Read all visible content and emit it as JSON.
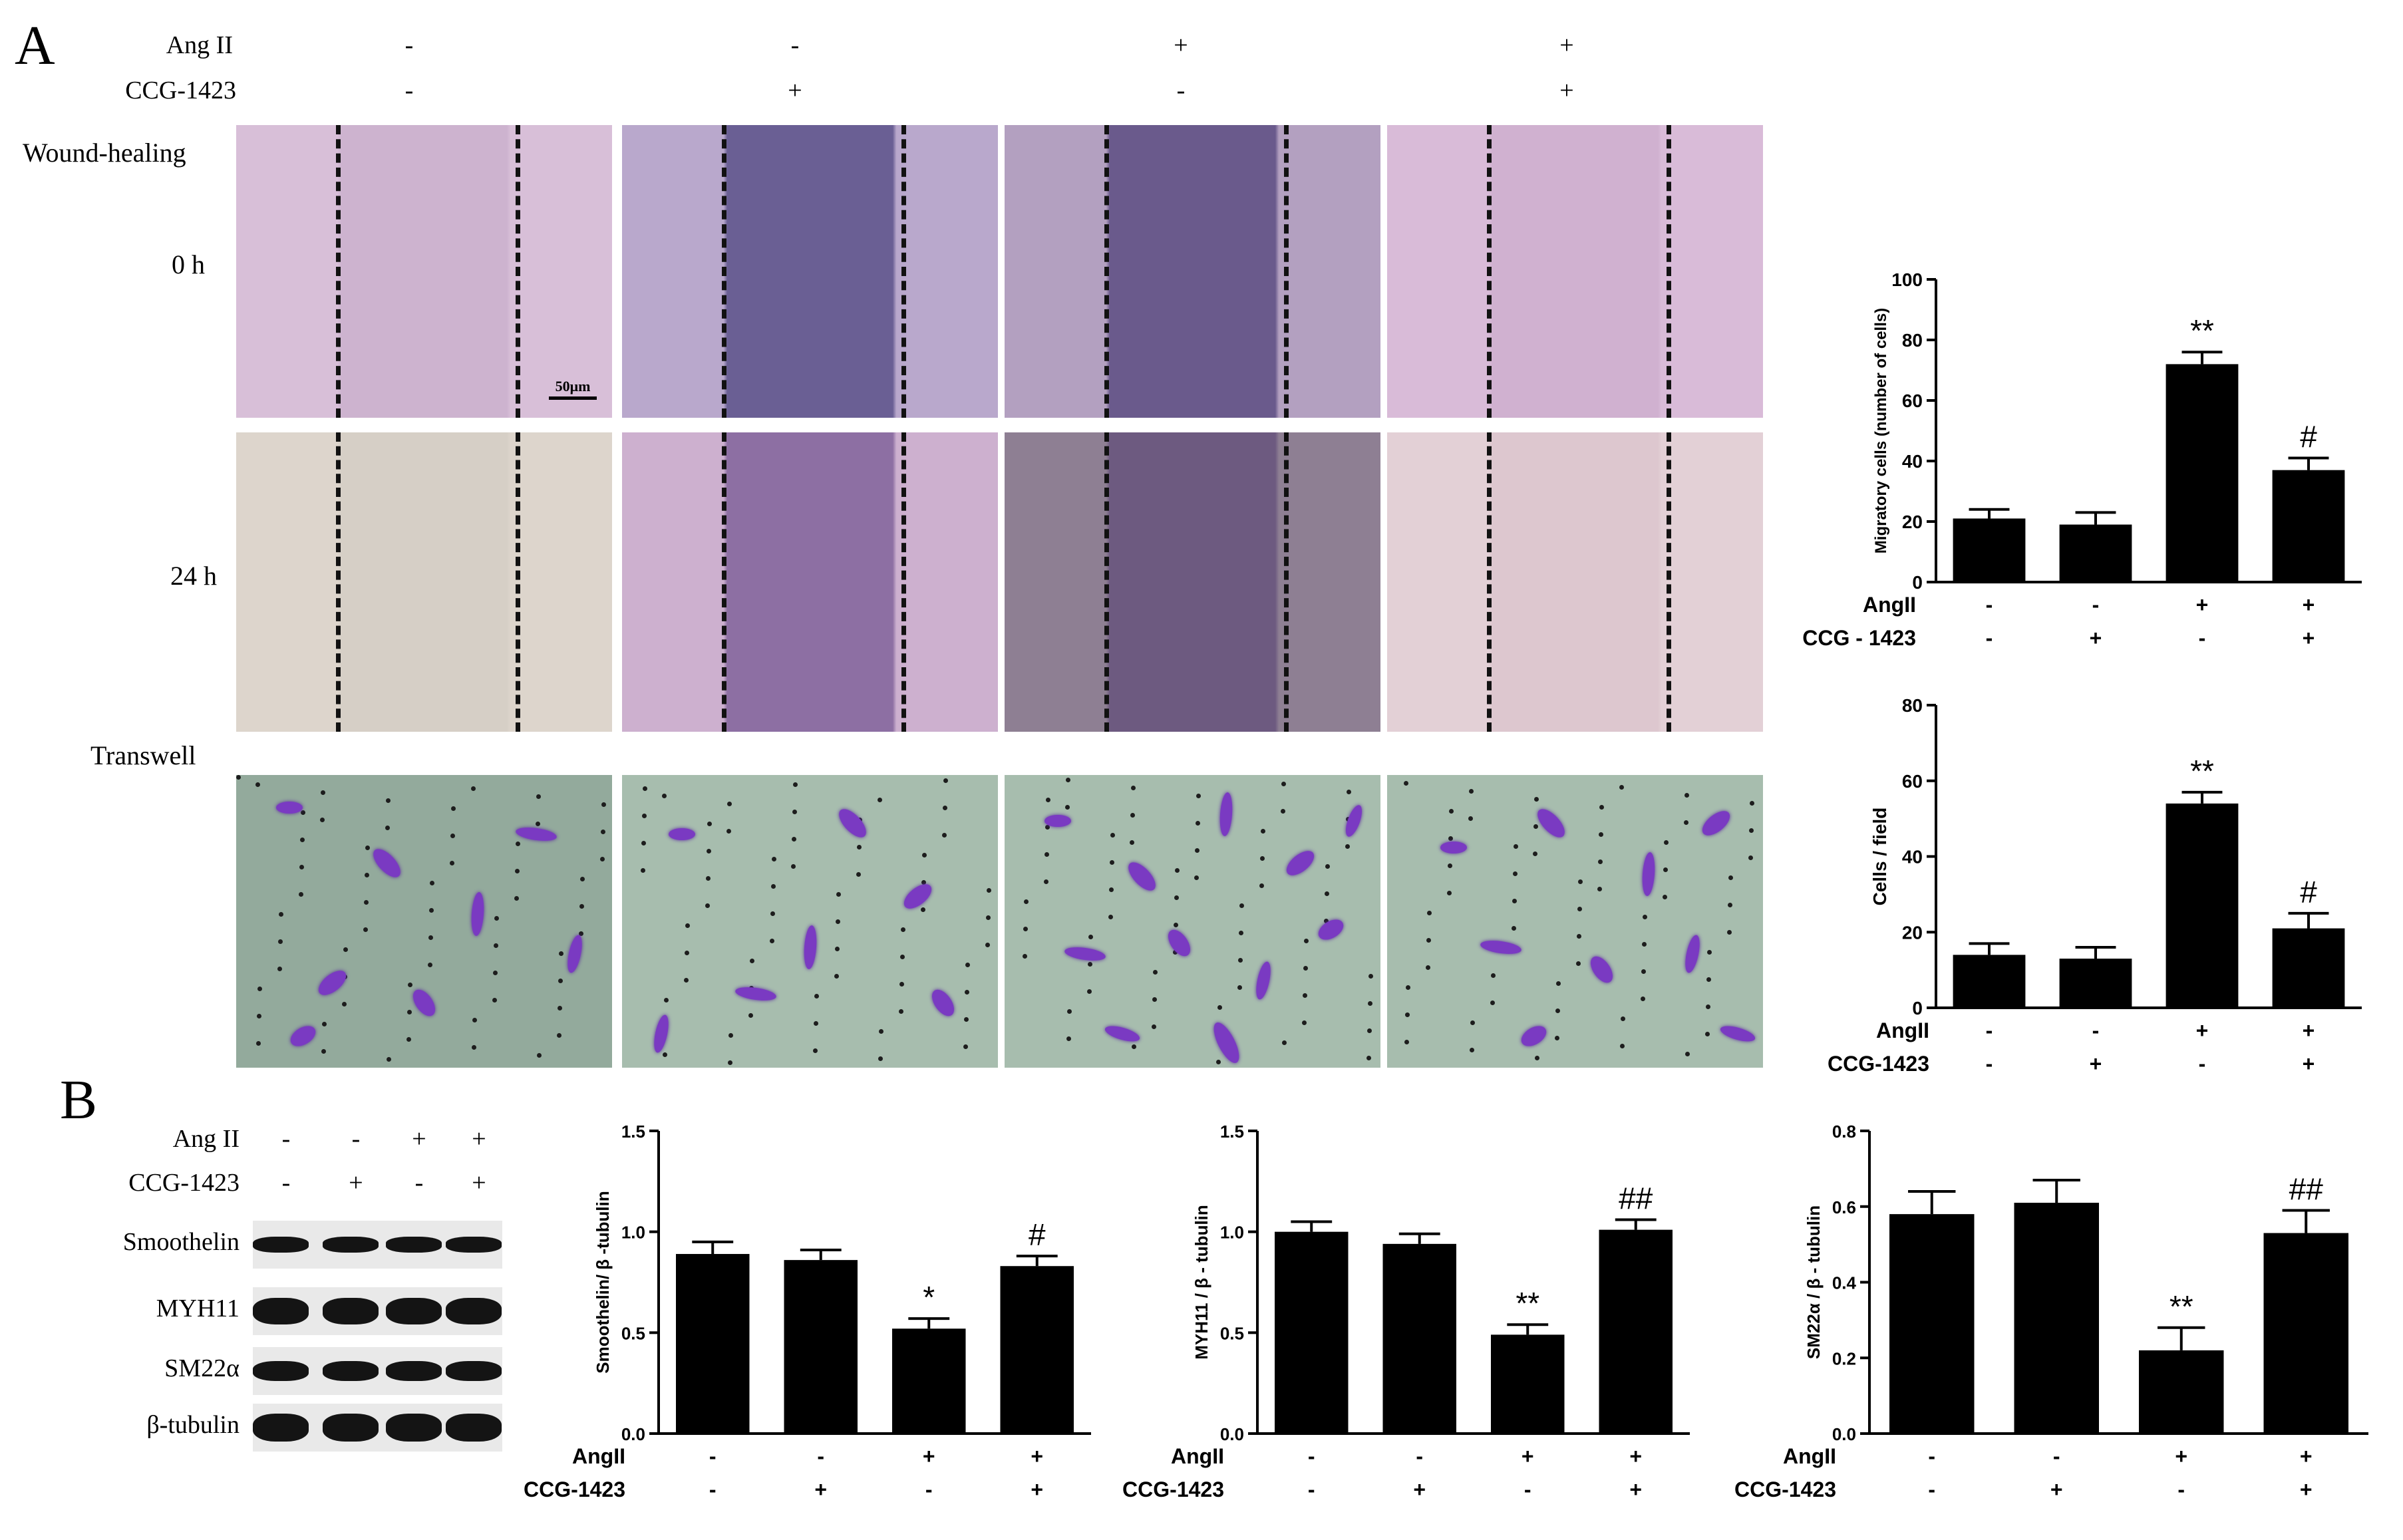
{
  "figure": {
    "panel_a_letter": "A",
    "panel_b_letter": "B",
    "panel_a_treatments": [
      {
        "label": "Ang II",
        "values": [
          "-",
          "-",
          "+",
          "+"
        ]
      },
      {
        "label": "CCG-1423",
        "values": [
          "-",
          "+",
          "-",
          "+"
        ]
      }
    ],
    "row_labels": {
      "wound_healing": "Wound-healing",
      "t0": "0 h",
      "t24": "24 h",
      "transwell": "Transwell"
    },
    "scale_bar": "50μm",
    "panel_b_treatments": [
      {
        "label": "Ang II",
        "values": [
          "-",
          "-",
          "+",
          "+"
        ]
      },
      {
        "label": "CCG-1423",
        "values": [
          "-",
          "+",
          "-",
          "+"
        ]
      }
    ],
    "wb_proteins": [
      "Smoothelin",
      "MYH11",
      "SM22α",
      "β-tubulin"
    ]
  },
  "colors": {
    "bar": "#000000",
    "wound_pink": "#d9bcd6",
    "wound_violet": "#8677a8",
    "transwell_green": "#9bb3a5",
    "cell_stain": "#7a3ac2"
  },
  "chart_data": [
    {
      "type": "bar",
      "ylabel": "Migratory cells (number of cells)",
      "ylim": [
        0,
        100
      ],
      "yticks": [
        0,
        20,
        40,
        60,
        80,
        100
      ],
      "values": [
        21,
        19,
        72,
        37
      ],
      "errors": [
        3,
        4,
        4,
        4
      ],
      "annotations": [
        "",
        "",
        "**",
        "#"
      ],
      "row_labels": [
        "AngII",
        "CCG - 1423"
      ],
      "row_values": [
        [
          "-",
          "-",
          "+",
          "+"
        ],
        [
          "-",
          "+",
          "-",
          "+"
        ]
      ]
    },
    {
      "type": "bar",
      "ylabel": "Cells / field",
      "ylim": [
        0,
        80
      ],
      "yticks": [
        0,
        20,
        40,
        60,
        80
      ],
      "values": [
        14,
        13,
        54,
        21
      ],
      "errors": [
        3,
        3,
        3,
        4
      ],
      "annotations": [
        "",
        "",
        "**",
        "#"
      ],
      "row_labels": [
        "AngII",
        "CCG-1423"
      ],
      "row_values": [
        [
          "-",
          "-",
          "+",
          "+"
        ],
        [
          "-",
          "+",
          "-",
          "+"
        ]
      ]
    },
    {
      "type": "bar",
      "ylabel": "Smoothelin/ β -tubulin",
      "ylim": [
        0,
        1.5
      ],
      "yticks": [
        "0.0",
        "0.5",
        "1.0",
        "1.5"
      ],
      "values": [
        0.89,
        0.86,
        0.52,
        0.83
      ],
      "errors": [
        0.06,
        0.05,
        0.05,
        0.05
      ],
      "annotations": [
        "",
        "",
        "*",
        "#"
      ],
      "row_labels": [
        "AngII",
        "CCG-1423"
      ],
      "row_values": [
        [
          "-",
          "-",
          "+",
          "+"
        ],
        [
          "-",
          "+",
          "-",
          "+"
        ]
      ]
    },
    {
      "type": "bar",
      "ylabel": "MYH11 / β - tubulin",
      "ylim": [
        0,
        1.5
      ],
      "yticks": [
        "0.0",
        "0.5",
        "1.0",
        "1.5"
      ],
      "values": [
        1.0,
        0.94,
        0.49,
        1.01
      ],
      "errors": [
        0.05,
        0.05,
        0.05,
        0.05
      ],
      "annotations": [
        "",
        "",
        "**",
        "##"
      ],
      "row_labels": [
        "AngII",
        "CCG-1423"
      ],
      "row_values": [
        [
          "-",
          "-",
          "+",
          "+"
        ],
        [
          "-",
          "+",
          "-",
          "+"
        ]
      ]
    },
    {
      "type": "bar",
      "ylabel": "SM22α / β - tubulin",
      "ylim": [
        0,
        0.8
      ],
      "yticks": [
        "0.0",
        "0.2",
        "0.4",
        "0.6",
        "0.8"
      ],
      "values": [
        0.58,
        0.61,
        0.22,
        0.53
      ],
      "errors": [
        0.06,
        0.06,
        0.06,
        0.06
      ],
      "annotations": [
        "",
        "",
        "**",
        "##"
      ],
      "row_labels": [
        "AngII",
        "CCG-1423"
      ],
      "row_values": [
        [
          "-",
          "-",
          "+",
          "+"
        ],
        [
          "-",
          "+",
          "-",
          "+"
        ]
      ]
    }
  ]
}
